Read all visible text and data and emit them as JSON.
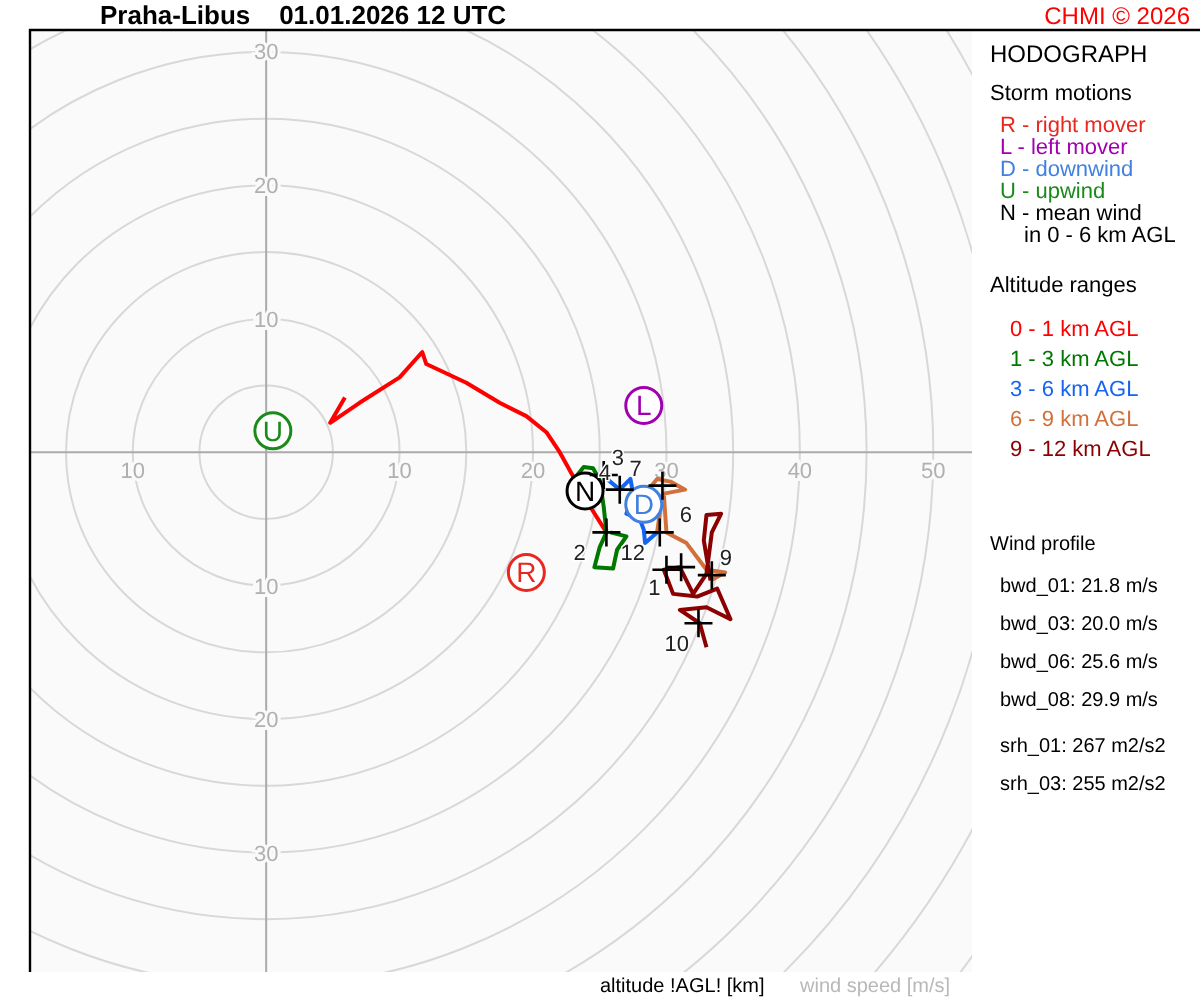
{
  "chart_data": {
    "type": "line",
    "title": "Praha-Libus    01.01.2026 12 UTC",
    "subtitle": "HODOGRAPH",
    "xlabel": "wind speed [m/s]",
    "annotations": [
      "CHMI © 2026",
      "Storm motions",
      "Altitude ranges",
      "Wind profile",
      "bwd_01: 21.8 m/s",
      "bwd_03: 20.0 m/s",
      "bwd_06: 25.6 m/s",
      "bwd_08: 29.9 m/s",
      "srh_01: 267 m2/s2",
      "srh_03: 255 m2/s2",
      "altitude !AGL! [km]",
      {
        "text": "2",
        "x": 25.5,
        "y": -6
      },
      {
        "text": "3",
        "x": 25.3,
        "y": -1.7
      },
      {
        "text": "4",
        "x": 26.5,
        "y": -2.8
      },
      {
        "text": "6",
        "x": 29.5,
        "y": -6
      },
      {
        "text": "7",
        "x": 29.7,
        "y": -2.5
      },
      {
        "text": "9",
        "x": 33.4,
        "y": -9.2
      },
      {
        "text": "10",
        "x": 32.4,
        "y": -12.8
      },
      {
        "text": "1",
        "x": 31.1,
        "y": -8.6
      },
      {
        "text": "12",
        "x": 30,
        "y": -8.8
      }
    ],
    "xlim": [
      -17.7,
      52.9
    ],
    "ylim": [
      -38.9,
      31.6
    ],
    "xticks": [
      {
        "value": -10,
        "label": "10"
      },
      10,
      20,
      30,
      40,
      50
    ],
    "yticks": [
      {
        "value": -30,
        "label": "30"
      },
      {
        "value": -20,
        "label": "20"
      },
      {
        "value": -10,
        "label": "10"
      },
      10,
      20,
      30
    ],
    "legend": "right",
    "series": [
      {
        "type": "scatter",
        "name": "R - right mover",
        "color": "#e82820",
        "marker": "circle",
        "x": [
          19.5
        ],
        "values": [
          -9
        ],
        "value_labels": [
          "R"
        ]
      },
      {
        "type": "scatter",
        "name": "L - left mover",
        "color": "#a000b0",
        "marker": "circle",
        "x": [
          28.3
        ],
        "values": [
          3.5
        ],
        "value_labels": [
          "L"
        ]
      },
      {
        "type": "scatter",
        "name": "D - downwind",
        "color": "#4080e0",
        "marker": "circle",
        "x": [
          28.3
        ],
        "values": [
          -3.9
        ],
        "value_labels": [
          "D"
        ]
      },
      {
        "type": "scatter",
        "name": "U - upwind",
        "color": "#1a8a1a",
        "marker": "circle",
        "x": [
          0.5
        ],
        "values": [
          1.6
        ],
        "value_labels": [
          "U"
        ]
      },
      {
        "type": "scatter",
        "name": "N - mean wind in 0 - 6 km AGL",
        "color": "#000000",
        "marker": "circle",
        "x": [
          23.9
        ],
        "values": [
          -2.9
        ],
        "value_labels": [
          "N"
        ]
      },
      {
        "name": "0 - 1 km AGL",
        "color": "#ff0000",
        "x": [
          5.9,
          4.8,
          7.0,
          10.0,
          11.7,
          12.0,
          15.0,
          17.5,
          19.5,
          21.0,
          22.0,
          23.0,
          24.3,
          25.5
        ],
        "values": [
          4.1,
          2.2,
          3.7,
          5.6,
          7.5,
          6.6,
          5.2,
          3.7,
          2.7,
          1.5,
          0,
          -1.8,
          -4.1,
          -6
        ]
      },
      {
        "name": "1 - 3 km AGL",
        "color": "#007800",
        "x": [
          23,
          23.8,
          24.5,
          25,
          25.3,
          25.5,
          25,
          24.6,
          26,
          26.3,
          27,
          25.8
        ],
        "values": [
          -2.1,
          -1.1,
          -1.2,
          -2.1,
          -4.1,
          -6,
          -7.1,
          -8.6,
          -8.7,
          -7.3,
          -6.3,
          -6
        ]
      },
      {
        "name": "3 - 6 km AGL",
        "color": "#1464f0",
        "x": [
          25.3,
          26.5,
          27.3,
          27.5,
          27,
          28,
          28.3,
          28.4,
          29.3
        ],
        "values": [
          -1.8,
          -2.8,
          -2,
          -3.1,
          -4.6,
          -5,
          -5.8,
          -6.8,
          -6
        ]
      },
      {
        "name": "6 - 9 km AGL",
        "color": "#d2703c",
        "x": [
          29.3,
          29.5,
          28.8,
          29.3,
          30.3,
          31.4,
          29.8,
          30,
          31.5,
          33,
          34.4,
          33.3
        ],
        "values": [
          -6,
          -4.6,
          -2.6,
          -2,
          -2.2,
          -2.8,
          -3.1,
          -6,
          -6.8,
          -8.8,
          -9,
          -9.6
        ]
      },
      {
        "name": "9 - 12 km AGL",
        "color": "#8b0000",
        "x": [
          33.3,
          32.8,
          33,
          34.1,
          33.4,
          33,
          32,
          31,
          29.8,
          30.5,
          32.3,
          33.8,
          34.8,
          33,
          31,
          32.5,
          33
        ],
        "values": [
          -9.6,
          -6.6,
          -4.7,
          -4.6,
          -6,
          -9.1,
          -10.6,
          -8.6,
          -8.8,
          -10.6,
          -10.8,
          -10.2,
          -12.5,
          -11.6,
          -11.8,
          -12.8,
          -14.6
        ]
      },
      {
        "type": "scatter",
        "color": "#000000",
        "marker": "cross",
        "x": [
          25.5,
          25.3,
          26.5,
          29.5,
          29.7,
          33.4,
          32.4,
          31.1,
          30
        ],
        "values": [
          -6,
          -1.7,
          -2.8,
          -6,
          -2.5,
          -9.2,
          -12.8,
          -8.6,
          -8.8
        ]
      }
    ]
  }
}
